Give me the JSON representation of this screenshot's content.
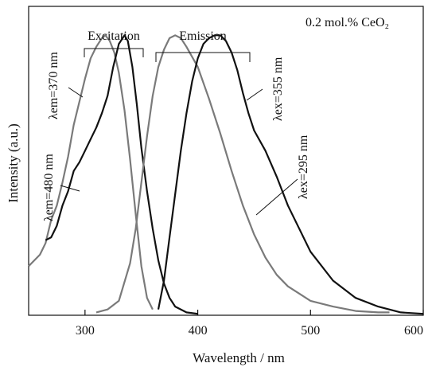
{
  "chart_data": {
    "type": "line",
    "title": "",
    "xlabel": "Wavelength / nm",
    "ylabel": "Intensity (a.u.)",
    "xlim": [
      250,
      600
    ],
    "ylim": [
      0,
      1.07
    ],
    "x_ticks": [
      300,
      400,
      500,
      600
    ],
    "y_ticks": [],
    "grid": false,
    "annotation_top_right": "0.2 mol.% CeO₂",
    "group_labels": {
      "excitation": "Excitation",
      "emission": "Emission"
    },
    "curve_labels": {
      "a": "λem=370 nm",
      "b": "λem=480 nm",
      "c": "λex=355 nm",
      "d": "λex=295 nm"
    },
    "series": [
      {
        "color": "#7a7a7a",
        "x": [
          250,
          255,
          260,
          265,
          270,
          275,
          280,
          285,
          290,
          295,
          300,
          305,
          310,
          315,
          318,
          322,
          326,
          330,
          335,
          340,
          345,
          350,
          355,
          360
        ],
        "y": [
          0.17,
          0.19,
          0.21,
          0.25,
          0.33,
          0.38,
          0.46,
          0.55,
          0.66,
          0.74,
          0.82,
          0.89,
          0.93,
          0.96,
          0.97,
          0.95,
          0.91,
          0.84,
          0.71,
          0.54,
          0.35,
          0.17,
          0.06,
          0.02
        ]
      },
      {
        "color": "#111111",
        "x": [
          265,
          270,
          275,
          280,
          285,
          290,
          295,
          300,
          305,
          310,
          315,
          320,
          325,
          330,
          335,
          338,
          342,
          346,
          350,
          355,
          360,
          365,
          370,
          375,
          380,
          390,
          400
        ],
        "y": [
          0.26,
          0.27,
          0.31,
          0.38,
          0.43,
          0.5,
          0.53,
          0.57,
          0.61,
          0.65,
          0.7,
          0.76,
          0.86,
          0.94,
          0.97,
          0.95,
          0.86,
          0.73,
          0.58,
          0.43,
          0.3,
          0.19,
          0.11,
          0.06,
          0.03,
          0.01,
          0.005
        ]
      },
      {
        "color": "#7a7a7a",
        "x": [
          310,
          320,
          330,
          340,
          345,
          350,
          355,
          360,
          365,
          370,
          375,
          380,
          385,
          390,
          400,
          410,
          420,
          430,
          440,
          450,
          460,
          470,
          480,
          500,
          520,
          540,
          560,
          570
        ],
        "y": [
          0.01,
          0.02,
          0.05,
          0.18,
          0.3,
          0.46,
          0.62,
          0.76,
          0.86,
          0.92,
          0.96,
          0.97,
          0.96,
          0.93,
          0.86,
          0.75,
          0.63,
          0.5,
          0.38,
          0.28,
          0.2,
          0.14,
          0.1,
          0.05,
          0.03,
          0.015,
          0.01,
          0.01
        ]
      },
      {
        "color": "#111111",
        "x": [
          365,
          370,
          375,
          380,
          385,
          390,
          395,
          400,
          405,
          410,
          415,
          420,
          425,
          430,
          435,
          440,
          445,
          450,
          460,
          470,
          480,
          490,
          500,
          520,
          540,
          560,
          580,
          600
        ],
        "y": [
          0.02,
          0.12,
          0.27,
          0.42,
          0.57,
          0.7,
          0.81,
          0.89,
          0.94,
          0.96,
          0.97,
          0.97,
          0.95,
          0.91,
          0.85,
          0.77,
          0.7,
          0.64,
          0.57,
          0.48,
          0.38,
          0.3,
          0.22,
          0.12,
          0.06,
          0.03,
          0.01,
          0.005
        ]
      }
    ]
  }
}
